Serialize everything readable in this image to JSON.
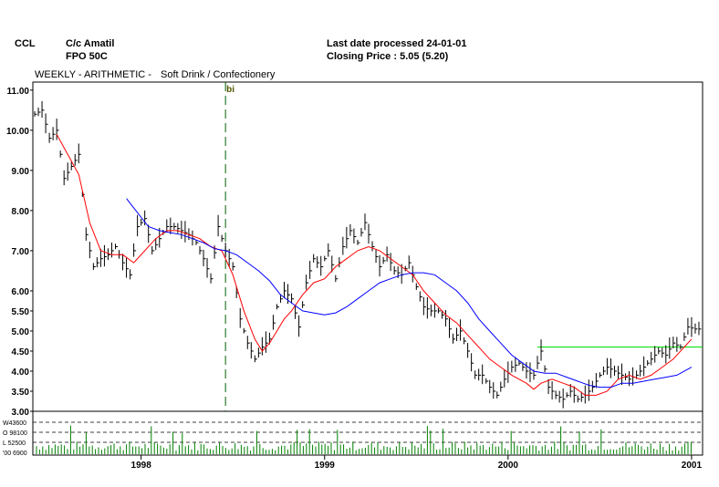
{
  "header": {
    "symbol": "CCL",
    "company": "C/c Amatil",
    "security": "FPO 50C",
    "last_date": "Last date processed 24-01-01",
    "closing_price": "Closing Price : 5.05  (5.20)",
    "subtitle_a": "WEEKLY - ARITHMETIC -",
    "subtitle_b": "Soft Drink / Confectionery"
  },
  "colors": {
    "price_bars": "#000000",
    "ma_short": "#ff0000",
    "ma_long": "#0000ff",
    "resistance": "#00dd00",
    "volume": "#008000",
    "marker": "#006000"
  },
  "chart_data": {
    "type": "line",
    "title": "",
    "xlabel": "",
    "ylabel": "",
    "ylim": [
      3.0,
      11.2
    ],
    "y_ticks": [
      "11.00",
      "10.00",
      "9.00",
      "8.00",
      "7.00",
      "6.00",
      "5.50",
      "5.00",
      "4.50",
      "4.00",
      "3.50",
      "3.00"
    ],
    "x_ticks": [
      {
        "label": "1998",
        "x": 1998.0
      },
      {
        "label": "1999",
        "x": 1999.0
      },
      {
        "label": "2000",
        "x": 2000.0
      },
      {
        "label": "2001",
        "x": 2001.0
      }
    ],
    "x_range": [
      1997.41,
      2001.06
    ],
    "volume_labels": [
      "W43600",
      "O 98100",
      "L 52500",
      "'00 6900"
    ],
    "marker": {
      "label": "bi",
      "x": 1998.46
    },
    "resistance_line": {
      "x_start": 2000.16,
      "x_end": 2001.06,
      "y": 4.6
    },
    "series": [
      {
        "kind": "price",
        "x": [
          1997.42,
          1997.46,
          1997.5,
          1997.54,
          1997.58,
          1997.62,
          1997.66,
          1997.7,
          1997.74,
          1997.78,
          1997.82,
          1997.86,
          1997.9,
          1997.94,
          1997.98,
          1998.02,
          1998.06,
          1998.1,
          1998.14,
          1998.18,
          1998.22,
          1998.26,
          1998.3,
          1998.34,
          1998.38,
          1998.42,
          1998.46,
          1998.5,
          1998.54,
          1998.58,
          1998.62,
          1998.66,
          1998.7,
          1998.74,
          1998.78,
          1998.82,
          1998.86,
          1998.9,
          1998.94,
          1998.98,
          1999.02,
          1999.06,
          1999.1,
          1999.14,
          1999.18,
          1999.22,
          1999.26,
          1999.3,
          1999.34,
          1999.38,
          1999.42,
          1999.46,
          1999.5,
          1999.54,
          1999.58,
          1999.62,
          1999.66,
          1999.7,
          1999.74,
          1999.78,
          1999.82,
          1999.86,
          1999.9,
          1999.94,
          1999.98,
          2000.02,
          2000.06,
          2000.1,
          2000.14,
          2000.18,
          2000.22,
          2000.26,
          2000.3,
          2000.34,
          2000.38,
          2000.42,
          2000.46,
          2000.5,
          2000.54,
          2000.58,
          2000.62,
          2000.66,
          2000.7,
          2000.74,
          2000.78,
          2000.82,
          2000.86,
          2000.9,
          2000.94,
          2000.98,
          2001.02
        ],
        "y": [
          10.4,
          10.5,
          9.8,
          10.0,
          8.8,
          9.1,
          9.4,
          7.4,
          6.6,
          6.8,
          6.9,
          7.1,
          6.7,
          6.4,
          7.6,
          7.8,
          7.0,
          7.3,
          7.6,
          7.6,
          7.5,
          7.4,
          7.2,
          6.8,
          6.3,
          7.6,
          7.0,
          6.6,
          5.3,
          4.7,
          4.3,
          4.6,
          4.8,
          5.6,
          6.0,
          5.8,
          5.1,
          6.2,
          6.8,
          6.6,
          7.0,
          6.3,
          7.1,
          7.5,
          7.2,
          7.7,
          7.1,
          6.6,
          6.9,
          6.5,
          6.4,
          6.7,
          6.1,
          5.6,
          5.5,
          5.5,
          5.3,
          4.8,
          5.0,
          4.5,
          3.9,
          3.9,
          3.6,
          3.4,
          3.8,
          4.1,
          4.2,
          4.0,
          3.9,
          4.5,
          3.6,
          3.4,
          3.3,
          3.5,
          3.3,
          3.4,
          3.6,
          3.9,
          4.1,
          4.0,
          3.9,
          3.8,
          3.9,
          4.1,
          4.3,
          4.5,
          4.4,
          4.7,
          4.6,
          5.1,
          5.05
        ]
      },
      {
        "kind": "ma_short",
        "x": [
          1997.54,
          1997.6,
          1997.66,
          1997.72,
          1997.78,
          1997.84,
          1997.9,
          1997.96,
          1998.02,
          1998.08,
          1998.14,
          1998.2,
          1998.26,
          1998.32,
          1998.38,
          1998.44,
          1998.5,
          1998.56,
          1998.62,
          1998.66,
          1998.7,
          1998.74,
          1998.78,
          1998.82,
          1998.88,
          1998.94,
          1999.0,
          1999.06,
          1999.12,
          1999.18,
          1999.24,
          1999.3,
          1999.36,
          1999.42,
          1999.48,
          1999.54,
          1999.6,
          1999.66,
          1999.72,
          1999.78,
          1999.84,
          1999.9,
          1999.96,
          2000.02,
          2000.06,
          2000.1,
          2000.14,
          2000.18,
          2000.24,
          2000.3,
          2000.36,
          2000.42,
          2000.48,
          2000.54,
          2000.6,
          2000.66,
          2000.72,
          2000.78,
          2000.84,
          2000.9,
          2000.96,
          2001.0
        ],
        "y": [
          9.9,
          9.4,
          8.9,
          7.7,
          7.0,
          6.9,
          6.9,
          6.7,
          7.0,
          7.3,
          7.5,
          7.5,
          7.4,
          7.3,
          7.1,
          7.0,
          6.4,
          5.5,
          4.8,
          4.5,
          4.7,
          5.0,
          5.3,
          5.5,
          5.9,
          6.2,
          6.3,
          6.6,
          6.8,
          7.0,
          7.1,
          7.0,
          6.8,
          6.6,
          6.4,
          6.0,
          5.7,
          5.4,
          5.2,
          4.9,
          4.6,
          4.3,
          4.1,
          3.9,
          3.8,
          3.7,
          3.55,
          3.7,
          3.8,
          3.7,
          3.6,
          3.4,
          3.4,
          3.5,
          3.8,
          3.9,
          3.8,
          3.9,
          4.1,
          4.3,
          4.6,
          4.8
        ]
      },
      {
        "kind": "ma_long",
        "x": [
          1997.92,
          1997.98,
          1998.04,
          1998.1,
          1998.16,
          1998.22,
          1998.28,
          1998.34,
          1998.4,
          1998.46,
          1998.52,
          1998.58,
          1998.64,
          1998.7,
          1998.76,
          1998.82,
          1998.88,
          1998.94,
          1999.0,
          1999.06,
          1999.12,
          1999.18,
          1999.24,
          1999.3,
          1999.36,
          1999.42,
          1999.48,
          1999.54,
          1999.6,
          1999.66,
          1999.72,
          1999.78,
          1999.84,
          1999.9,
          1999.96,
          2000.02,
          2000.08,
          2000.14,
          2000.2,
          2000.26,
          2000.32,
          2000.38,
          2000.44,
          2000.5,
          2000.56,
          2000.62,
          2000.68,
          2000.74,
          2000.8,
          2000.86,
          2000.92,
          2000.98,
          2001.0
        ],
        "y": [
          8.3,
          7.95,
          7.6,
          7.5,
          7.45,
          7.4,
          7.3,
          7.2,
          7.05,
          7.0,
          6.9,
          6.7,
          6.5,
          6.25,
          5.9,
          5.7,
          5.5,
          5.45,
          5.4,
          5.45,
          5.6,
          5.8,
          6.0,
          6.2,
          6.3,
          6.4,
          6.45,
          6.45,
          6.4,
          6.2,
          6.0,
          5.7,
          5.3,
          5.0,
          4.7,
          4.4,
          4.2,
          4.0,
          3.95,
          3.95,
          3.85,
          3.75,
          3.65,
          3.6,
          3.6,
          3.7,
          3.7,
          3.75,
          3.8,
          3.85,
          3.9,
          4.05,
          4.1
        ]
      }
    ]
  }
}
